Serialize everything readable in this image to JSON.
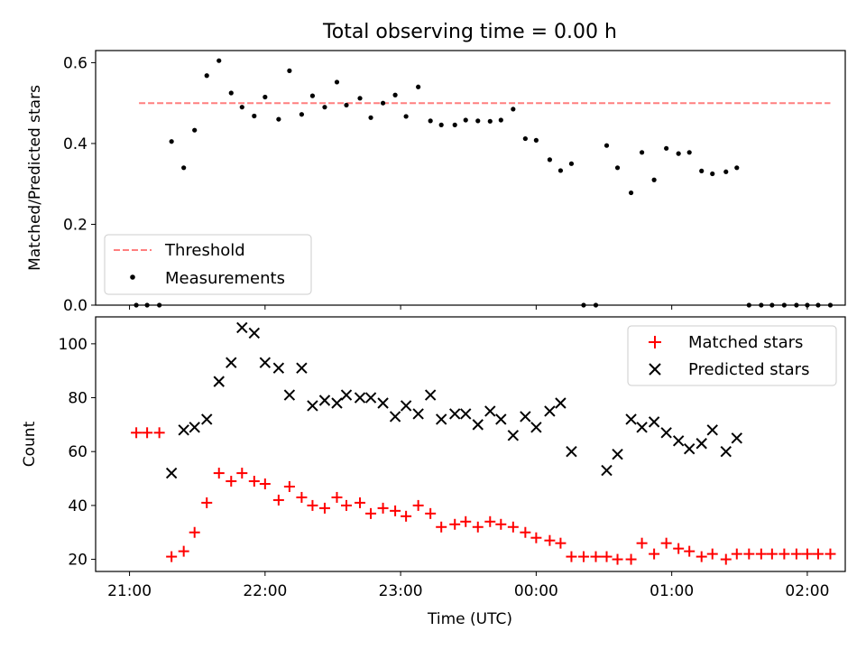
{
  "figure": {
    "title": "Total observing time = 0.00 h"
  },
  "chart_data": [
    {
      "type": "scatter",
      "ylabel": "Matched/Predicted stars",
      "xlabel": "",
      "xlim": [
        -0.25,
        5.28
      ],
      "ylim": [
        0,
        0.63
      ],
      "yticks": [
        0.0,
        0.2,
        0.4,
        0.6
      ],
      "ytick_labels": [
        "0.0",
        "0.2",
        "0.4",
        "0.6"
      ],
      "grid": false,
      "legend": {
        "placement": "lower-left",
        "entries": [
          "Threshold",
          "Measurements"
        ]
      },
      "threshold": {
        "name": "Threshold",
        "value": 0.5,
        "x": [
          0.07,
          5.17
        ],
        "color": "#ff7f7f"
      },
      "measurements": {
        "name": "Measurements",
        "color": "#000000",
        "x": [
          0.05,
          0.13,
          0.22,
          0.31,
          0.4,
          0.48,
          0.57,
          0.66,
          0.75,
          0.83,
          0.92,
          1.0,
          1.1,
          1.18,
          1.27,
          1.35,
          1.44,
          1.53,
          1.6,
          1.7,
          1.78,
          1.87,
          1.96,
          2.04,
          2.13,
          2.22,
          2.3,
          2.4,
          2.48,
          2.57,
          2.66,
          2.74,
          2.83,
          2.92,
          3.0,
          3.1,
          3.18,
          3.26,
          3.35,
          3.44,
          3.52,
          3.6,
          3.7,
          3.78,
          3.87,
          3.96,
          4.05,
          4.13,
          4.22,
          4.3,
          4.4,
          4.48,
          4.57,
          4.66,
          4.74,
          4.83,
          4.92,
          5.0,
          5.08,
          5.17
        ],
        "y": [
          0.0,
          0.0,
          0.0,
          0.405,
          0.34,
          0.433,
          0.568,
          0.605,
          0.525,
          0.49,
          0.468,
          0.515,
          0.46,
          0.58,
          0.472,
          0.518,
          0.49,
          0.552,
          0.495,
          0.512,
          0.464,
          0.5,
          0.52,
          0.467,
          0.54,
          0.456,
          0.446,
          0.446,
          0.458,
          0.456,
          0.455,
          0.458,
          0.485,
          0.412,
          0.408,
          0.36,
          0.333,
          0.35,
          0.0,
          0.0,
          0.395,
          0.34,
          0.278,
          0.378,
          0.31,
          0.388,
          0.375,
          0.378,
          0.332,
          0.325,
          0.33,
          0.34,
          0.0,
          0.0,
          0.0,
          0.0,
          0.0,
          0.0,
          0.0,
          0.0
        ]
      }
    },
    {
      "type": "scatter",
      "ylabel": "Count",
      "xlabel": "Time (UTC)",
      "xlim": [
        -0.25,
        5.28
      ],
      "ylim": [
        15.5,
        110
      ],
      "yticks": [
        20,
        40,
        60,
        80,
        100
      ],
      "ytick_labels": [
        "20",
        "40",
        "60",
        "80",
        "100"
      ],
      "xticks": [
        0,
        1,
        2,
        3,
        4,
        5
      ],
      "xtick_labels": [
        "21:00",
        "22:00",
        "23:00",
        "00:00",
        "01:00",
        "02:00"
      ],
      "grid": false,
      "legend": {
        "placement": "top-right",
        "entries": [
          "Matched stars",
          "Predicted stars"
        ]
      },
      "series": [
        {
          "name": "Matched stars",
          "marker": "plus",
          "color": "#ff0000",
          "x": [
            0.05,
            0.13,
            0.22,
            0.31,
            0.4,
            0.48,
            0.57,
            0.66,
            0.75,
            0.83,
            0.92,
            1.0,
            1.1,
            1.18,
            1.27,
            1.35,
            1.44,
            1.53,
            1.6,
            1.7,
            1.78,
            1.87,
            1.96,
            2.04,
            2.13,
            2.22,
            2.3,
            2.4,
            2.48,
            2.57,
            2.66,
            2.74,
            2.83,
            2.92,
            3.0,
            3.1,
            3.18,
            3.26,
            3.35,
            3.44,
            3.52,
            3.6,
            3.7,
            3.78,
            3.87,
            3.96,
            4.05,
            4.13,
            4.22,
            4.3,
            4.4,
            4.48,
            4.57,
            4.66,
            4.74,
            4.83,
            4.92,
            5.0,
            5.08,
            5.17
          ],
          "y": [
            67,
            67,
            67,
            21,
            23,
            30,
            41,
            52,
            49,
            52,
            49,
            48,
            42,
            47,
            43,
            40,
            39,
            43,
            40,
            41,
            37,
            39,
            38,
            36,
            40,
            37,
            32,
            33,
            34,
            32,
            34,
            33,
            32,
            30,
            28,
            27,
            26,
            21,
            21,
            21,
            21,
            20,
            20,
            26,
            22,
            26,
            24,
            23,
            21,
            22,
            20,
            22,
            22,
            22,
            22,
            22,
            22,
            22,
            22,
            22
          ]
        },
        {
          "name": "Predicted stars",
          "marker": "x",
          "color": "#000000",
          "x": [
            0.31,
            0.4,
            0.48,
            0.57,
            0.66,
            0.75,
            0.83,
            0.92,
            1.0,
            1.1,
            1.18,
            1.27,
            1.35,
            1.44,
            1.53,
            1.6,
            1.7,
            1.78,
            1.87,
            1.96,
            2.04,
            2.13,
            2.22,
            2.3,
            2.4,
            2.48,
            2.57,
            2.66,
            2.74,
            2.83,
            2.92,
            3.0,
            3.1,
            3.18,
            3.26,
            3.52,
            3.6,
            3.7,
            3.78,
            3.87,
            3.96,
            4.05,
            4.13,
            4.22,
            4.3,
            4.4,
            4.48
          ],
          "y": [
            52,
            68,
            69,
            72,
            86,
            93,
            106,
            104,
            93,
            91,
            81,
            91,
            77,
            79,
            78,
            81,
            80,
            80,
            78,
            73,
            77,
            74,
            81,
            72,
            74,
            74,
            70,
            75,
            72,
            66,
            73,
            69,
            75,
            78,
            60,
            53,
            59,
            72,
            69,
            71,
            67,
            64,
            61,
            63,
            68,
            60,
            65
          ]
        }
      ]
    }
  ]
}
